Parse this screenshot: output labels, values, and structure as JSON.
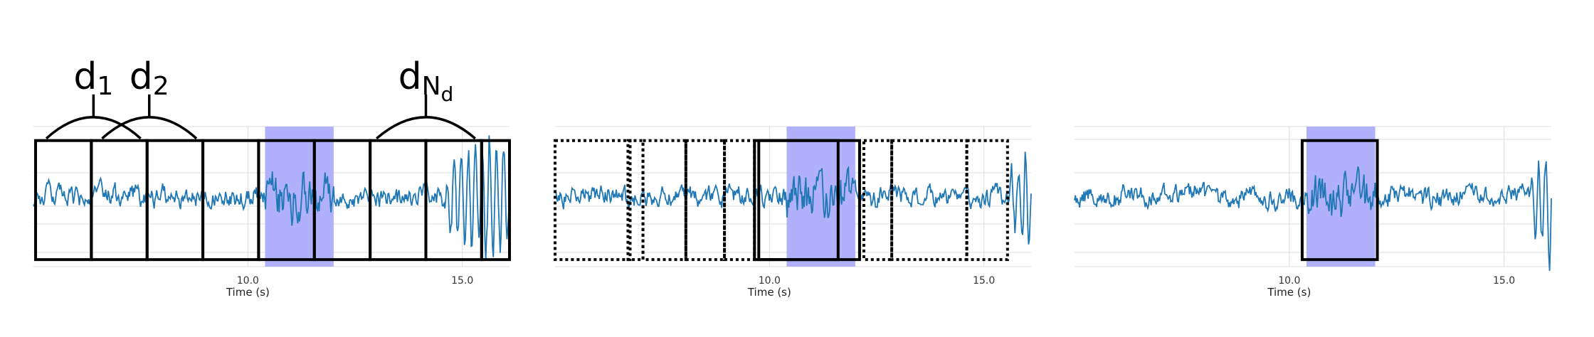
{
  "colors": {
    "signal": "#1f77b4",
    "highlight": "#b0b0fb",
    "grid": "#dddddd",
    "box": "#000000",
    "background": "#ffffff"
  },
  "chart_data": [
    {
      "type": "line",
      "panel": "left",
      "xlabel": "Time (s)",
      "ylabel": "",
      "title": "",
      "xlim": [
        5.0,
        16.1
      ],
      "ylim": [
        -1.0,
        1.0
      ],
      "xticks": [
        10.0,
        15.0
      ],
      "xtick_labels": [
        "10.0",
        "15.0"
      ],
      "grid": true,
      "signal": {
        "start": 5.0,
        "end": 16.1,
        "burst_start": 14.6
      },
      "highlight_region": [
        10.4,
        12.0
      ],
      "windows": [
        {
          "start": 5.05,
          "end": 6.35,
          "style": "solid"
        },
        {
          "start": 6.35,
          "end": 7.65,
          "style": "solid"
        },
        {
          "start": 7.65,
          "end": 8.95,
          "style": "solid"
        },
        {
          "start": 8.95,
          "end": 10.25,
          "style": "solid"
        },
        {
          "start": 10.25,
          "end": 11.55,
          "style": "solid"
        },
        {
          "start": 11.55,
          "end": 12.85,
          "style": "solid"
        },
        {
          "start": 12.85,
          "end": 14.15,
          "style": "solid"
        },
        {
          "start": 14.15,
          "end": 15.45,
          "style": "solid"
        },
        {
          "start": 15.45,
          "end": 16.1,
          "style": "solid"
        }
      ],
      "window_y": [
        -0.9,
        0.8
      ],
      "annotations": [
        {
          "base": "d",
          "sub": "1",
          "span": [
            5.3,
            7.5
          ],
          "bracket_y": 0.85
        },
        {
          "base": "d",
          "sub": "2",
          "span": [
            6.6,
            8.8
          ],
          "bracket_y": 0.85
        },
        {
          "base": "d",
          "sub": "N",
          "subsub": "d",
          "span": [
            13.0,
            15.3
          ],
          "bracket_y": 0.85
        }
      ]
    },
    {
      "type": "line",
      "panel": "middle",
      "xlabel": "Time (s)",
      "ylabel": "",
      "title": "",
      "xlim": [
        5.0,
        16.1
      ],
      "ylim": [
        -1.0,
        1.0
      ],
      "xticks": [
        10.0,
        15.0
      ],
      "xtick_labels": [
        "10.0",
        "15.0"
      ],
      "grid": true,
      "signal": {
        "start": 5.0,
        "end": 16.1,
        "burst_start": 15.6
      },
      "highlight_region": [
        10.4,
        12.0
      ],
      "windows": [
        {
          "start": 5.0,
          "end": 6.75,
          "style": "dotted"
        },
        {
          "start": 6.7,
          "end": 7.05,
          "style": "dotted"
        },
        {
          "start": 7.05,
          "end": 8.05,
          "style": "dotted"
        },
        {
          "start": 8.05,
          "end": 8.95,
          "style": "dotted"
        },
        {
          "start": 8.95,
          "end": 9.65,
          "style": "dotted"
        },
        {
          "start": 12.2,
          "end": 12.85,
          "style": "dotted"
        },
        {
          "start": 12.85,
          "end": 14.6,
          "style": "dotted"
        },
        {
          "start": 14.6,
          "end": 15.55,
          "style": "dotted"
        },
        {
          "start": 9.65,
          "end": 11.6,
          "style": "solid"
        },
        {
          "start": 9.75,
          "end": 12.1,
          "style": "solid"
        }
      ],
      "window_y": [
        -0.9,
        0.8
      ],
      "annotations": []
    },
    {
      "type": "line",
      "panel": "right",
      "xlabel": "Time (s)",
      "ylabel": "",
      "title": "",
      "xlim": [
        5.0,
        16.1
      ],
      "ylim": [
        -1.0,
        1.0
      ],
      "xticks": [
        10.0,
        15.0
      ],
      "xtick_labels": [
        "10.0",
        "15.0"
      ],
      "grid": true,
      "signal": {
        "start": 5.0,
        "end": 16.1,
        "burst_start": 15.6
      },
      "highlight_region": [
        10.4,
        12.0
      ],
      "windows": [
        {
          "start": 10.3,
          "end": 12.05,
          "style": "solid"
        }
      ],
      "window_y": [
        -0.9,
        0.8
      ],
      "annotations": []
    }
  ]
}
